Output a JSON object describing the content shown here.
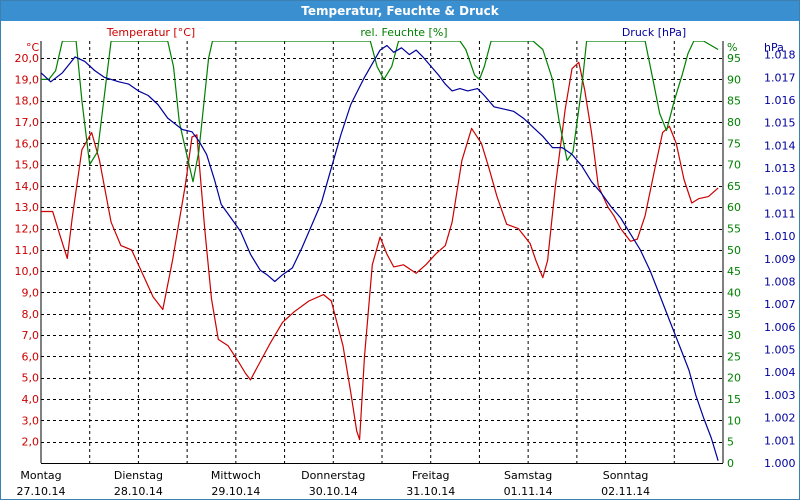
{
  "window": {
    "title": "Temperatur, Feuchte & Druck"
  },
  "colors": {
    "temperature": "#cc0000",
    "humidity": "#008000",
    "pressure": "#00009c",
    "title_bar": "#3a8fd0",
    "grid": "#000000"
  },
  "chart_data": {
    "type": "line",
    "title": "Temperatur, Feuchte & Druck",
    "grid": true,
    "x_range_days": [
      0,
      7
    ],
    "x_tick_labels": [
      {
        "day": "Montag",
        "date": "27.10.14"
      },
      {
        "day": "Dienstag",
        "date": "28.10.14"
      },
      {
        "day": "Mittwoch",
        "date": "29.10.14"
      },
      {
        "day": "Donnerstag",
        "date": "30.10.14"
      },
      {
        "day": "Freitag",
        "date": "31.10.14"
      },
      {
        "day": "Samstag",
        "date": "01.11.14"
      },
      {
        "day": "Sonntag",
        "date": "02.11.14"
      }
    ],
    "axes": {
      "left": {
        "unit": "°C",
        "ylim": [
          1,
          20.8
        ],
        "ticks": [
          "2,0",
          "3,0",
          "4,0",
          "5,0",
          "6,0",
          "7,0",
          "8,0",
          "9,0",
          "10,0",
          "11,0",
          "12,0",
          "13,0",
          "14,0",
          "15,0",
          "16,0",
          "17,0",
          "18,0",
          "19,0",
          "20,0"
        ]
      },
      "right1": {
        "unit": "%",
        "ylim": [
          0,
          99
        ],
        "ticks": [
          "0",
          "5",
          "10",
          "15",
          "20",
          "25",
          "30",
          "35",
          "40",
          "45",
          "50",
          "55",
          "60",
          "65",
          "70",
          "75",
          "80",
          "85",
          "90",
          "95"
        ]
      },
      "right2": {
        "unit": "hPa",
        "ylim": [
          1000.0,
          1018.6
        ],
        "ticks": [
          "1.000",
          "1.001",
          "1.002",
          "1.003",
          "1.004",
          "1.005",
          "1.006",
          "1.007",
          "1.008",
          "1.009",
          "1.010",
          "1.011",
          "1.012",
          "1.013",
          "1.014",
          "1.015",
          "1.016",
          "1.017",
          "1.018"
        ]
      }
    },
    "series": [
      {
        "name": "Temperatur [°C]",
        "axis": "left",
        "points": [
          [
            0,
            12.8
          ],
          [
            0.12,
            12.8
          ],
          [
            0.2,
            11.6
          ],
          [
            0.27,
            10.6
          ],
          [
            0.32,
            12.5
          ],
          [
            0.42,
            15.7
          ],
          [
            0.52,
            16.5
          ],
          [
            0.6,
            15.2
          ],
          [
            0.72,
            12.3
          ],
          [
            0.82,
            11.2
          ],
          [
            0.93,
            11.0
          ],
          [
            1.05,
            9.8
          ],
          [
            1.15,
            8.8
          ],
          [
            1.25,
            8.2
          ],
          [
            1.35,
            10.5
          ],
          [
            1.48,
            14.0
          ],
          [
            1.55,
            16.3
          ],
          [
            1.6,
            16.4
          ],
          [
            1.68,
            12.0
          ],
          [
            1.75,
            8.7
          ],
          [
            1.82,
            6.8
          ],
          [
            1.92,
            6.5
          ],
          [
            2.02,
            5.8
          ],
          [
            2.1,
            5.2
          ],
          [
            2.15,
            4.9
          ],
          [
            2.22,
            5.5
          ],
          [
            2.35,
            6.6
          ],
          [
            2.48,
            7.6
          ],
          [
            2.6,
            8.1
          ],
          [
            2.75,
            8.6
          ],
          [
            2.9,
            8.9
          ],
          [
            2.98,
            8.6
          ],
          [
            3.1,
            6.5
          ],
          [
            3.18,
            4.3
          ],
          [
            3.24,
            2.5
          ],
          [
            3.27,
            2.1
          ],
          [
            3.32,
            6.0
          ],
          [
            3.4,
            10.3
          ],
          [
            3.48,
            11.6
          ],
          [
            3.55,
            10.8
          ],
          [
            3.62,
            10.2
          ],
          [
            3.72,
            10.3
          ],
          [
            3.85,
            9.9
          ],
          [
            3.95,
            10.3
          ],
          [
            4.05,
            10.8
          ],
          [
            4.15,
            11.2
          ],
          [
            4.22,
            12.3
          ],
          [
            4.32,
            15.2
          ],
          [
            4.42,
            16.7
          ],
          [
            4.52,
            16.0
          ],
          [
            4.6,
            14.8
          ],
          [
            4.68,
            13.5
          ],
          [
            4.78,
            12.2
          ],
          [
            4.9,
            12.0
          ],
          [
            5.02,
            11.3
          ],
          [
            5.08,
            10.5
          ],
          [
            5.15,
            9.7
          ],
          [
            5.2,
            10.5
          ],
          [
            5.28,
            14.0
          ],
          [
            5.38,
            17.6
          ],
          [
            5.45,
            19.5
          ],
          [
            5.52,
            19.8
          ],
          [
            5.58,
            18.5
          ],
          [
            5.65,
            16.5
          ],
          [
            5.72,
            14.0
          ],
          [
            5.82,
            13.0
          ],
          [
            5.88,
            12.6
          ],
          [
            5.95,
            12.0
          ],
          [
            6.05,
            11.4
          ],
          [
            6.12,
            11.5
          ],
          [
            6.2,
            12.6
          ],
          [
            6.3,
            14.8
          ],
          [
            6.38,
            16.5
          ],
          [
            6.45,
            16.8
          ],
          [
            6.52,
            16.0
          ],
          [
            6.6,
            14.3
          ],
          [
            6.68,
            13.2
          ],
          [
            6.75,
            13.4
          ],
          [
            6.85,
            13.5
          ],
          [
            6.95,
            13.9
          ]
        ]
      },
      {
        "name": "rel. Feuchte [%]",
        "axis": "right1",
        "points": [
          [
            0,
            90
          ],
          [
            0.08,
            90
          ],
          [
            0.15,
            92
          ],
          [
            0.22,
            99
          ],
          [
            0.3,
            99
          ],
          [
            0.36,
            99
          ],
          [
            0.42,
            85
          ],
          [
            0.5,
            70
          ],
          [
            0.58,
            73
          ],
          [
            0.66,
            88
          ],
          [
            0.72,
            99
          ],
          [
            1.3,
            99
          ],
          [
            1.36,
            93
          ],
          [
            1.42,
            80
          ],
          [
            1.5,
            72
          ],
          [
            1.56,
            66
          ],
          [
            1.62,
            73
          ],
          [
            1.72,
            95
          ],
          [
            1.76,
            99
          ],
          [
            3.38,
            99
          ],
          [
            3.45,
            93
          ],
          [
            3.52,
            90
          ],
          [
            3.6,
            93
          ],
          [
            3.67,
            99
          ],
          [
            4.3,
            99
          ],
          [
            4.36,
            97
          ],
          [
            4.45,
            91
          ],
          [
            4.5,
            90
          ],
          [
            4.55,
            93
          ],
          [
            4.62,
            99
          ],
          [
            5.05,
            99
          ],
          [
            5.15,
            97
          ],
          [
            5.25,
            90
          ],
          [
            5.32,
            80
          ],
          [
            5.4,
            71
          ],
          [
            5.46,
            73
          ],
          [
            5.55,
            88
          ],
          [
            5.6,
            99
          ],
          [
            6.2,
            99
          ],
          [
            6.28,
            90
          ],
          [
            6.35,
            82
          ],
          [
            6.42,
            78
          ],
          [
            6.5,
            85
          ],
          [
            6.58,
            91
          ],
          [
            6.64,
            96
          ],
          [
            6.7,
            99
          ],
          [
            6.8,
            99
          ],
          [
            6.95,
            97
          ]
        ]
      },
      {
        "name": "Druck [hPa]",
        "axis": "right2",
        "points": [
          [
            0,
            1017.2
          ],
          [
            0.1,
            1016.8
          ],
          [
            0.22,
            1017.2
          ],
          [
            0.35,
            1017.9
          ],
          [
            0.45,
            1017.7
          ],
          [
            0.55,
            1017.3
          ],
          [
            0.65,
            1017.0
          ],
          [
            0.8,
            1016.8
          ],
          [
            0.9,
            1016.7
          ],
          [
            1.0,
            1016.4
          ],
          [
            1.1,
            1016.2
          ],
          [
            1.2,
            1015.8
          ],
          [
            1.3,
            1015.2
          ],
          [
            1.45,
            1014.7
          ],
          [
            1.55,
            1014.6
          ],
          [
            1.62,
            1014.2
          ],
          [
            1.7,
            1013.6
          ],
          [
            1.78,
            1012.5
          ],
          [
            1.85,
            1011.4
          ],
          [
            1.95,
            1010.8
          ],
          [
            2.05,
            1010.2
          ],
          [
            2.15,
            1009.2
          ],
          [
            2.25,
            1008.5
          ],
          [
            2.32,
            1008.3
          ],
          [
            2.4,
            1008.0
          ],
          [
            2.48,
            1008.3
          ],
          [
            2.58,
            1008.6
          ],
          [
            2.68,
            1009.5
          ],
          [
            2.78,
            1010.5
          ],
          [
            2.88,
            1011.5
          ],
          [
            2.98,
            1013.0
          ],
          [
            3.08,
            1014.5
          ],
          [
            3.18,
            1015.8
          ],
          [
            3.25,
            1016.4
          ],
          [
            3.32,
            1017.0
          ],
          [
            3.4,
            1017.6
          ],
          [
            3.48,
            1018.2
          ],
          [
            3.55,
            1018.4
          ],
          [
            3.62,
            1018.1
          ],
          [
            3.7,
            1018.3
          ],
          [
            3.78,
            1018.0
          ],
          [
            3.85,
            1018.2
          ],
          [
            3.92,
            1017.9
          ],
          [
            4.0,
            1017.5
          ],
          [
            4.08,
            1017.1
          ],
          [
            4.15,
            1016.7
          ],
          [
            4.22,
            1016.4
          ],
          [
            4.3,
            1016.5
          ],
          [
            4.38,
            1016.4
          ],
          [
            4.48,
            1016.5
          ],
          [
            4.55,
            1016.2
          ],
          [
            4.65,
            1015.7
          ],
          [
            4.75,
            1015.6
          ],
          [
            4.85,
            1015.5
          ],
          [
            4.95,
            1015.2
          ],
          [
            5.05,
            1014.8
          ],
          [
            5.15,
            1014.4
          ],
          [
            5.25,
            1013.9
          ],
          [
            5.35,
            1013.9
          ],
          [
            5.45,
            1013.6
          ],
          [
            5.55,
            1013.1
          ],
          [
            5.65,
            1012.4
          ],
          [
            5.75,
            1011.9
          ],
          [
            5.85,
            1011.3
          ],
          [
            5.95,
            1010.8
          ],
          [
            6.05,
            1010.1
          ],
          [
            6.15,
            1009.4
          ],
          [
            6.25,
            1008.5
          ],
          [
            6.35,
            1007.4
          ],
          [
            6.45,
            1006.3
          ],
          [
            6.55,
            1005.2
          ],
          [
            6.65,
            1004.1
          ],
          [
            6.72,
            1003.0
          ],
          [
            6.8,
            1002.0
          ],
          [
            6.88,
            1001.1
          ],
          [
            6.95,
            1000.1
          ]
        ]
      }
    ]
  }
}
